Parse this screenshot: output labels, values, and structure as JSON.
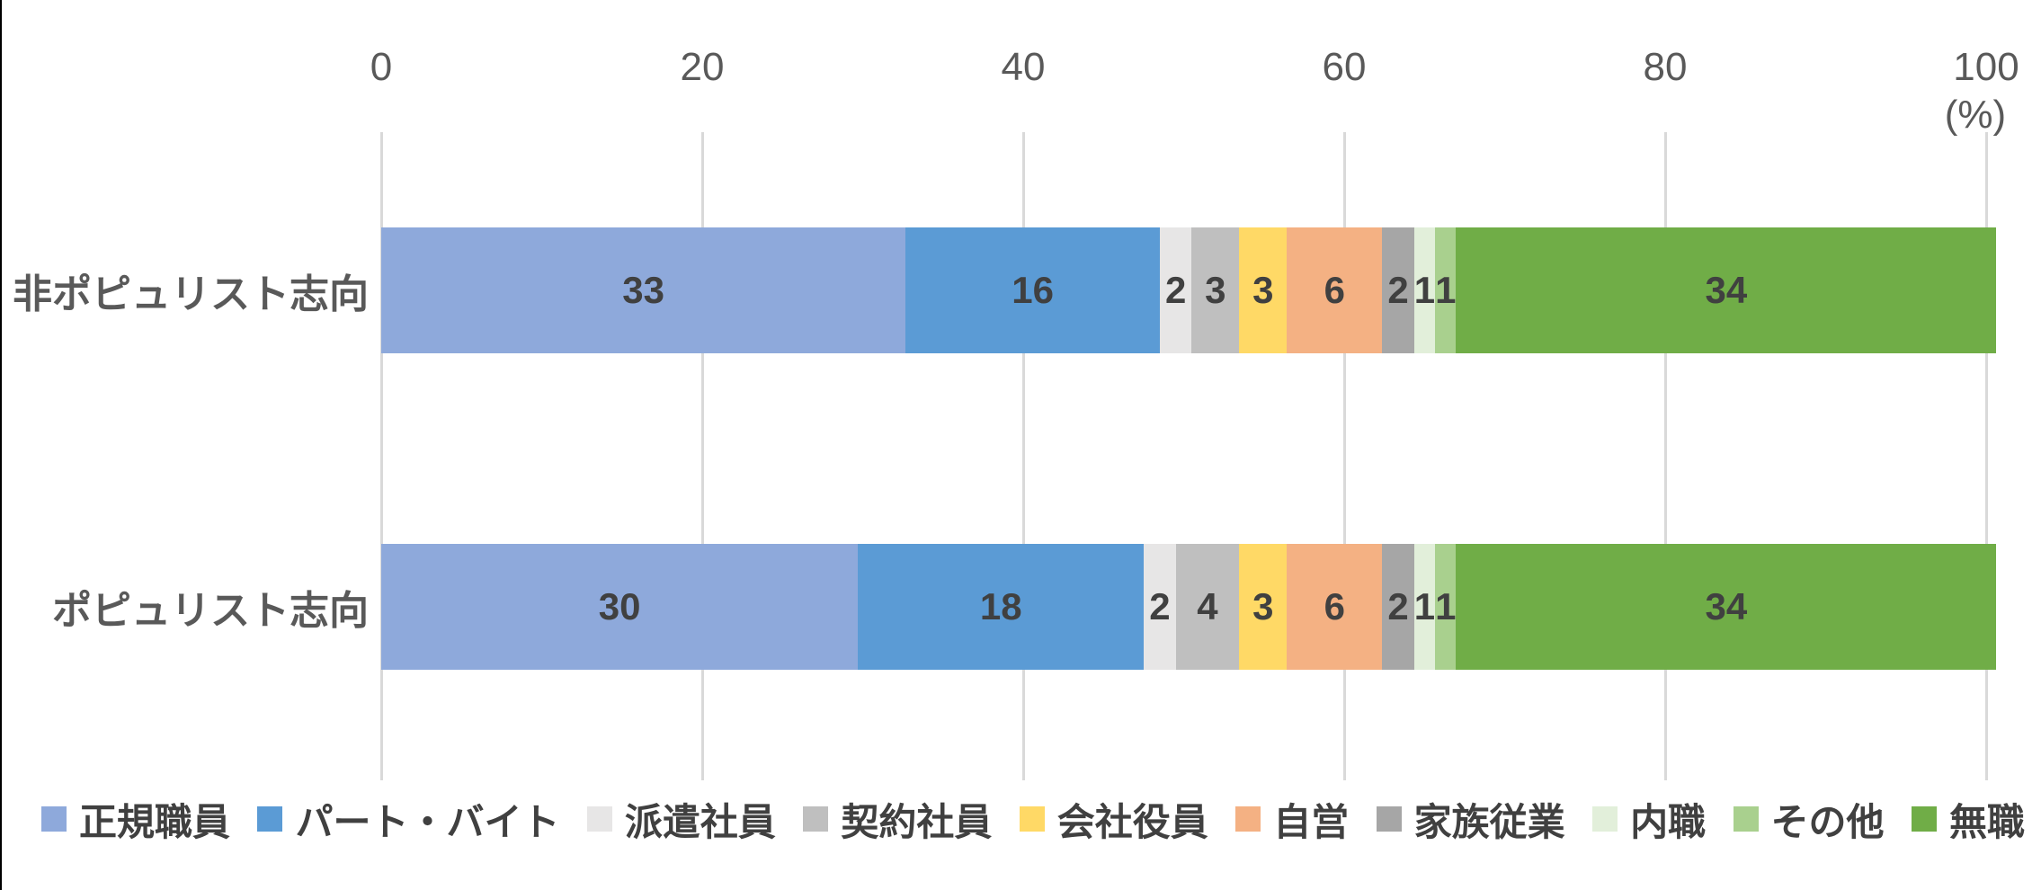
{
  "chart_data": {
    "type": "bar",
    "orientation": "horizontal",
    "stacked": true,
    "title": "",
    "unit_label": "(%)",
    "x_axis": {
      "min": 0,
      "max": 100,
      "ticks": [
        0,
        20,
        40,
        60,
        80,
        100
      ],
      "position": "top"
    },
    "grid": true,
    "legend_position": "bottom",
    "categories": [
      "非ポピュリスト志向",
      "ポピュリスト志向"
    ],
    "series": [
      {
        "name": "正規職員",
        "color": "#8EA9DB",
        "values": [
          33,
          30
        ]
      },
      {
        "name": "パート・バイト",
        "color": "#5B9BD5",
        "values": [
          16,
          18
        ]
      },
      {
        "name": "派遣社員",
        "color": "#E7E6E6",
        "values": [
          2,
          2
        ]
      },
      {
        "name": "契約社員",
        "color": "#BFBFBF",
        "values": [
          3,
          4
        ]
      },
      {
        "name": "会社役員",
        "color": "#FFD966",
        "values": [
          3,
          3
        ]
      },
      {
        "name": "自営",
        "color": "#F4B183",
        "values": [
          6,
          6
        ]
      },
      {
        "name": "家族従業",
        "color": "#A6A6A6",
        "values": [
          2,
          2
        ]
      },
      {
        "name": "内職",
        "color": "#E2EFDA",
        "values": [
          1,
          1
        ]
      },
      {
        "name": "その他",
        "color": "#A9D08E",
        "values": [
          1,
          1
        ]
      },
      {
        "name": "無職",
        "color": "#70AD47",
        "values": [
          34,
          34
        ]
      }
    ],
    "colors": {
      "gridline": "#D9D9D9",
      "axis_text": "#595959",
      "category_text": "#595959",
      "data_label_text": "#404040",
      "legend_text": "#404040",
      "left_border": "#000000"
    }
  }
}
